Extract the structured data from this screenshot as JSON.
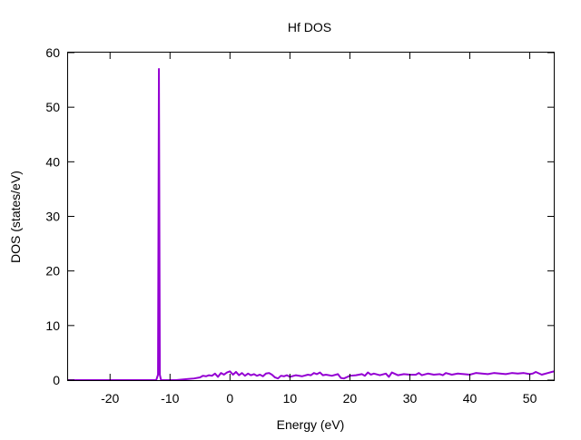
{
  "chart_data": {
    "type": "line",
    "title": "Hf DOS",
    "xlabel": "Energy (eV)",
    "ylabel": "DOS (states/eV)",
    "xlim": [
      -27,
      54
    ],
    "ylim": [
      0,
      60
    ],
    "xticks": [
      -20,
      -10,
      0,
      10,
      20,
      30,
      40,
      50
    ],
    "yticks": [
      0,
      10,
      20,
      30,
      40,
      50,
      60
    ],
    "grid": false,
    "series": [
      {
        "color": "#9400d3",
        "x": [
          -27,
          -13,
          -12.3,
          -12.0,
          -11.85,
          -11.7,
          -11.5,
          -11.2,
          -10,
          -9,
          -8,
          -7,
          -6,
          -5,
          -4.5,
          -4,
          -3.5,
          -3,
          -2.5,
          -2,
          -1.5,
          -1,
          -0.5,
          0,
          0.5,
          1,
          1.5,
          2,
          2.5,
          3,
          3.5,
          4,
          4.5,
          5,
          5.5,
          6,
          6.5,
          7,
          7.5,
          8,
          8.5,
          9,
          9.5,
          10,
          11,
          12,
          13,
          13.5,
          14,
          14.5,
          15,
          15.5,
          16,
          17,
          18,
          18.5,
          19,
          20,
          21,
          22,
          22.5,
          23,
          23.5,
          24,
          25,
          26,
          26.5,
          27,
          28,
          29,
          30,
          31,
          31.5,
          32,
          33,
          34,
          35,
          35.5,
          36,
          37,
          38,
          39,
          40,
          41,
          42,
          43,
          44,
          45,
          46,
          47,
          48,
          49,
          50,
          50.5,
          51,
          52,
          53,
          54
        ],
        "y": [
          0,
          0,
          0,
          1,
          57,
          1,
          0,
          0,
          0,
          0,
          0.1,
          0.2,
          0.3,
          0.5,
          0.8,
          0.7,
          0.9,
          0.8,
          1.2,
          0.6,
          1.3,
          1.0,
          1.4,
          1.6,
          1.0,
          1.5,
          0.9,
          1.3,
          0.8,
          1.2,
          0.9,
          1.1,
          0.8,
          1.0,
          0.7,
          1.2,
          1.3,
          1.0,
          0.5,
          0.3,
          0.8,
          0.7,
          0.9,
          0.6,
          0.9,
          0.7,
          1.0,
          0.9,
          1.3,
          1.1,
          1.4,
          0.9,
          1.0,
          0.8,
          1.1,
          0.4,
          0.3,
          0.8,
          0.9,
          1.1,
          0.8,
          1.4,
          1.0,
          1.2,
          0.9,
          1.2,
          0.6,
          1.4,
          0.9,
          1.1,
          1.0,
          1.0,
          1.3,
          0.9,
          1.2,
          1.0,
          1.1,
          0.9,
          1.3,
          1.0,
          1.2,
          1.1,
          1.0,
          1.3,
          1.2,
          1.1,
          1.3,
          1.2,
          1.1,
          1.3,
          1.2,
          1.3,
          1.1,
          1.2,
          1.5,
          1.0,
          1.3,
          1.6
        ]
      }
    ]
  }
}
